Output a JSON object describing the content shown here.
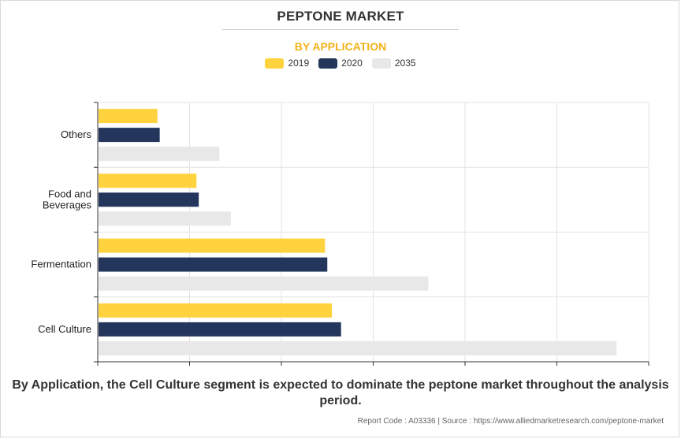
{
  "header": {
    "title": "PEPTONE MARKET",
    "subtitle": "BY APPLICATION"
  },
  "colors": {
    "series_2019": "#ffd33d",
    "series_2020": "#24365c",
    "series_2035": "#e8e8e8",
    "subtitle": "#f2b21b"
  },
  "chart_data": {
    "type": "bar",
    "orientation": "horizontal",
    "categories": [
      "Others",
      "Food and Beverages",
      "Fermentation",
      "Cell Culture"
    ],
    "category_lines": [
      [
        "Others"
      ],
      [
        "Food and",
        "Beverages"
      ],
      [
        "Fermentation"
      ],
      [
        "Cell Culture"
      ]
    ],
    "series": [
      {
        "name": "2019",
        "values": [
          13,
          21.5,
          49.5,
          51
        ]
      },
      {
        "name": "2020",
        "values": [
          13.5,
          22,
          50,
          53
        ]
      },
      {
        "name": "2035",
        "values": [
          26.5,
          29,
          72,
          113
        ]
      }
    ],
    "xlim": [
      0,
      120
    ],
    "x_gridlines": 6,
    "x_tick_labels_shown": false,
    "grid": true,
    "legend_position": "top-center"
  },
  "caption": "By Application, the Cell Culture segment is expected to dominate the peptone market throughout the analysis period.",
  "footer": "Report Code : A03336  |  Source : https://www.alliedmarketresearch.com/peptone-market"
}
